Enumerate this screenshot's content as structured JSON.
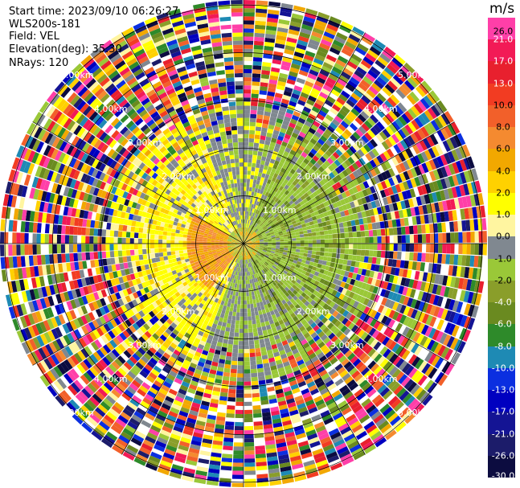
{
  "header": {
    "start_time": "Start time: 2023/09/10 06:26:27",
    "instrument": "WLS200s-181",
    "field": "Field: VEL",
    "elevation": "Elevation(deg): 35.30",
    "nrays": "NRays: 120"
  },
  "colorbar": {
    "title": "m/s",
    "labels": [
      "26.0",
      "21.0",
      "17.0",
      "13.0",
      "10.0",
      "8.0",
      "6.0",
      "4.0",
      "2.0",
      "1.0",
      "0.0",
      "-1.0",
      "-2.0",
      "-4.0",
      "-6.0",
      "-8.0",
      "-10.0",
      "-13.0",
      "-17.0",
      "-21.0",
      "-26.0",
      "-30.0"
    ],
    "colors": [
      "#ff3fa8",
      "#f21a56",
      "#e8202e",
      "#f23c22",
      "#f2602a",
      "#f48a30",
      "#f2a800",
      "#ffd100",
      "#ffff00",
      "#fff5a0",
      "#808890",
      "#9ac838",
      "#8a9e2a",
      "#6a8a20",
      "#2e8a2a",
      "#1e8ab4",
      "#0b2fe0",
      "#0000c0",
      "#141494",
      "#1c1c6a",
      "#0c0c40"
    ]
  },
  "chart_data": {
    "type": "ppi",
    "title": "",
    "field": "VEL",
    "units": "m/s",
    "range_rings_km": [
      1.0,
      2.0,
      3.0,
      4.0,
      5.0
    ],
    "ring_labels": [
      "1.00km",
      "2.00km",
      "3.00km",
      "4.00km",
      "5.00km"
    ],
    "n_rays": 120,
    "color_scale": [
      -30.0,
      -26.0,
      -21.0,
      -17.0,
      -13.0,
      -10.0,
      -8.0,
      -6.0,
      -4.0,
      -2.0,
      -1.0,
      0.0,
      1.0,
      2.0,
      4.0,
      6.0,
      8.0,
      10.0,
      13.0,
      17.0,
      21.0,
      26.0
    ],
    "grid": true
  }
}
